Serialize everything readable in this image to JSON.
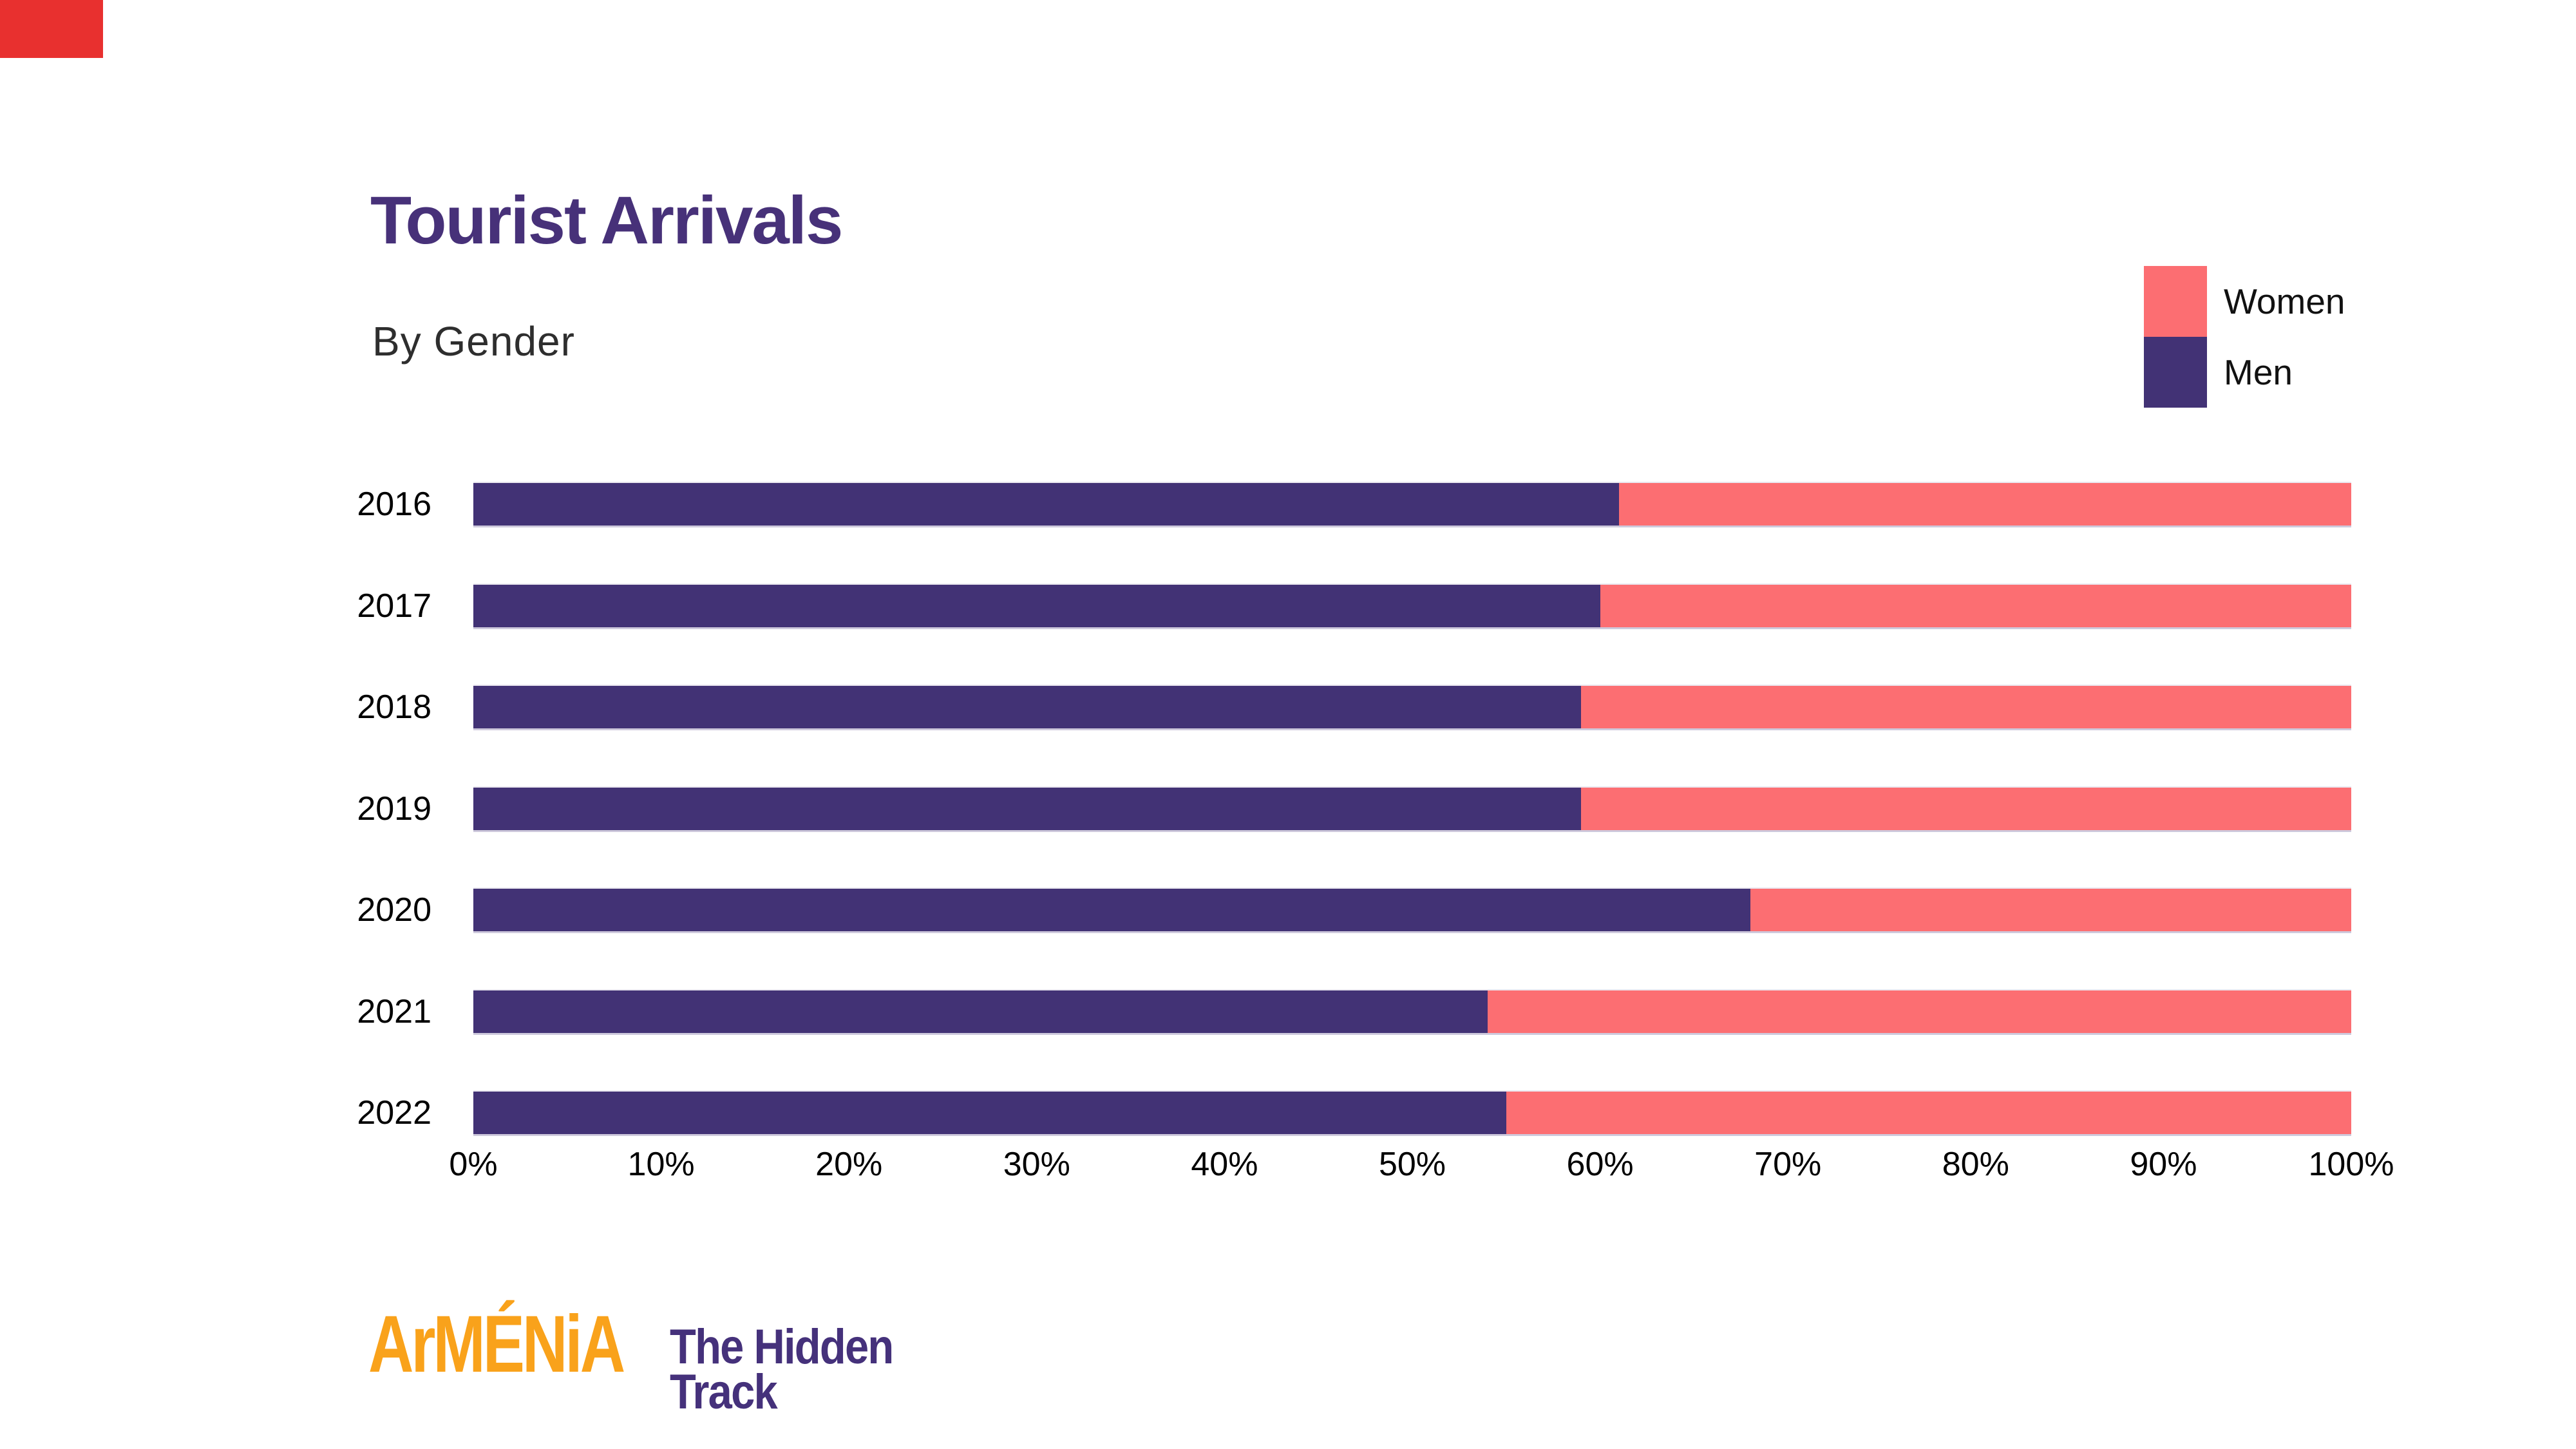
{
  "title": "Tourist Arrivals",
  "subtitle": "By Gender",
  "legend": [
    {
      "label": "Women",
      "color": "#FC6E72"
    },
    {
      "label": "Men",
      "color": "#423275"
    }
  ],
  "colors": {
    "men_bar": "#423275",
    "women_bar": "#FC6E72",
    "title_text": "#473179",
    "corner_accent": "#E8302F",
    "logo_orange": "#F9A21B",
    "logo_purple": "#45317B"
  },
  "chart_data": {
    "type": "bar",
    "orientation": "horizontal",
    "stacked": true,
    "title": "Tourist Arrivals",
    "subtitle": "By Gender",
    "categories": [
      "2016",
      "2017",
      "2018",
      "2019",
      "2020",
      "2021",
      "2022"
    ],
    "series": [
      {
        "name": "Men",
        "values": [
          61,
          60,
          59,
          59,
          68,
          54,
          55
        ]
      },
      {
        "name": "Women",
        "values": [
          39,
          40,
          41,
          41,
          32,
          46,
          45
        ]
      }
    ],
    "value_unit": "%",
    "xlim": [
      0,
      100
    ],
    "x_ticks": [
      "0%",
      "10%",
      "20%",
      "30%",
      "40%",
      "50%",
      "60%",
      "70%",
      "80%",
      "90%",
      "100%"
    ],
    "grid": false,
    "legend_position": "top-right"
  },
  "logo": {
    "wordmark": "ArMÉNiA",
    "tagline_line1": "The Hidden",
    "tagline_line2": "Track"
  }
}
